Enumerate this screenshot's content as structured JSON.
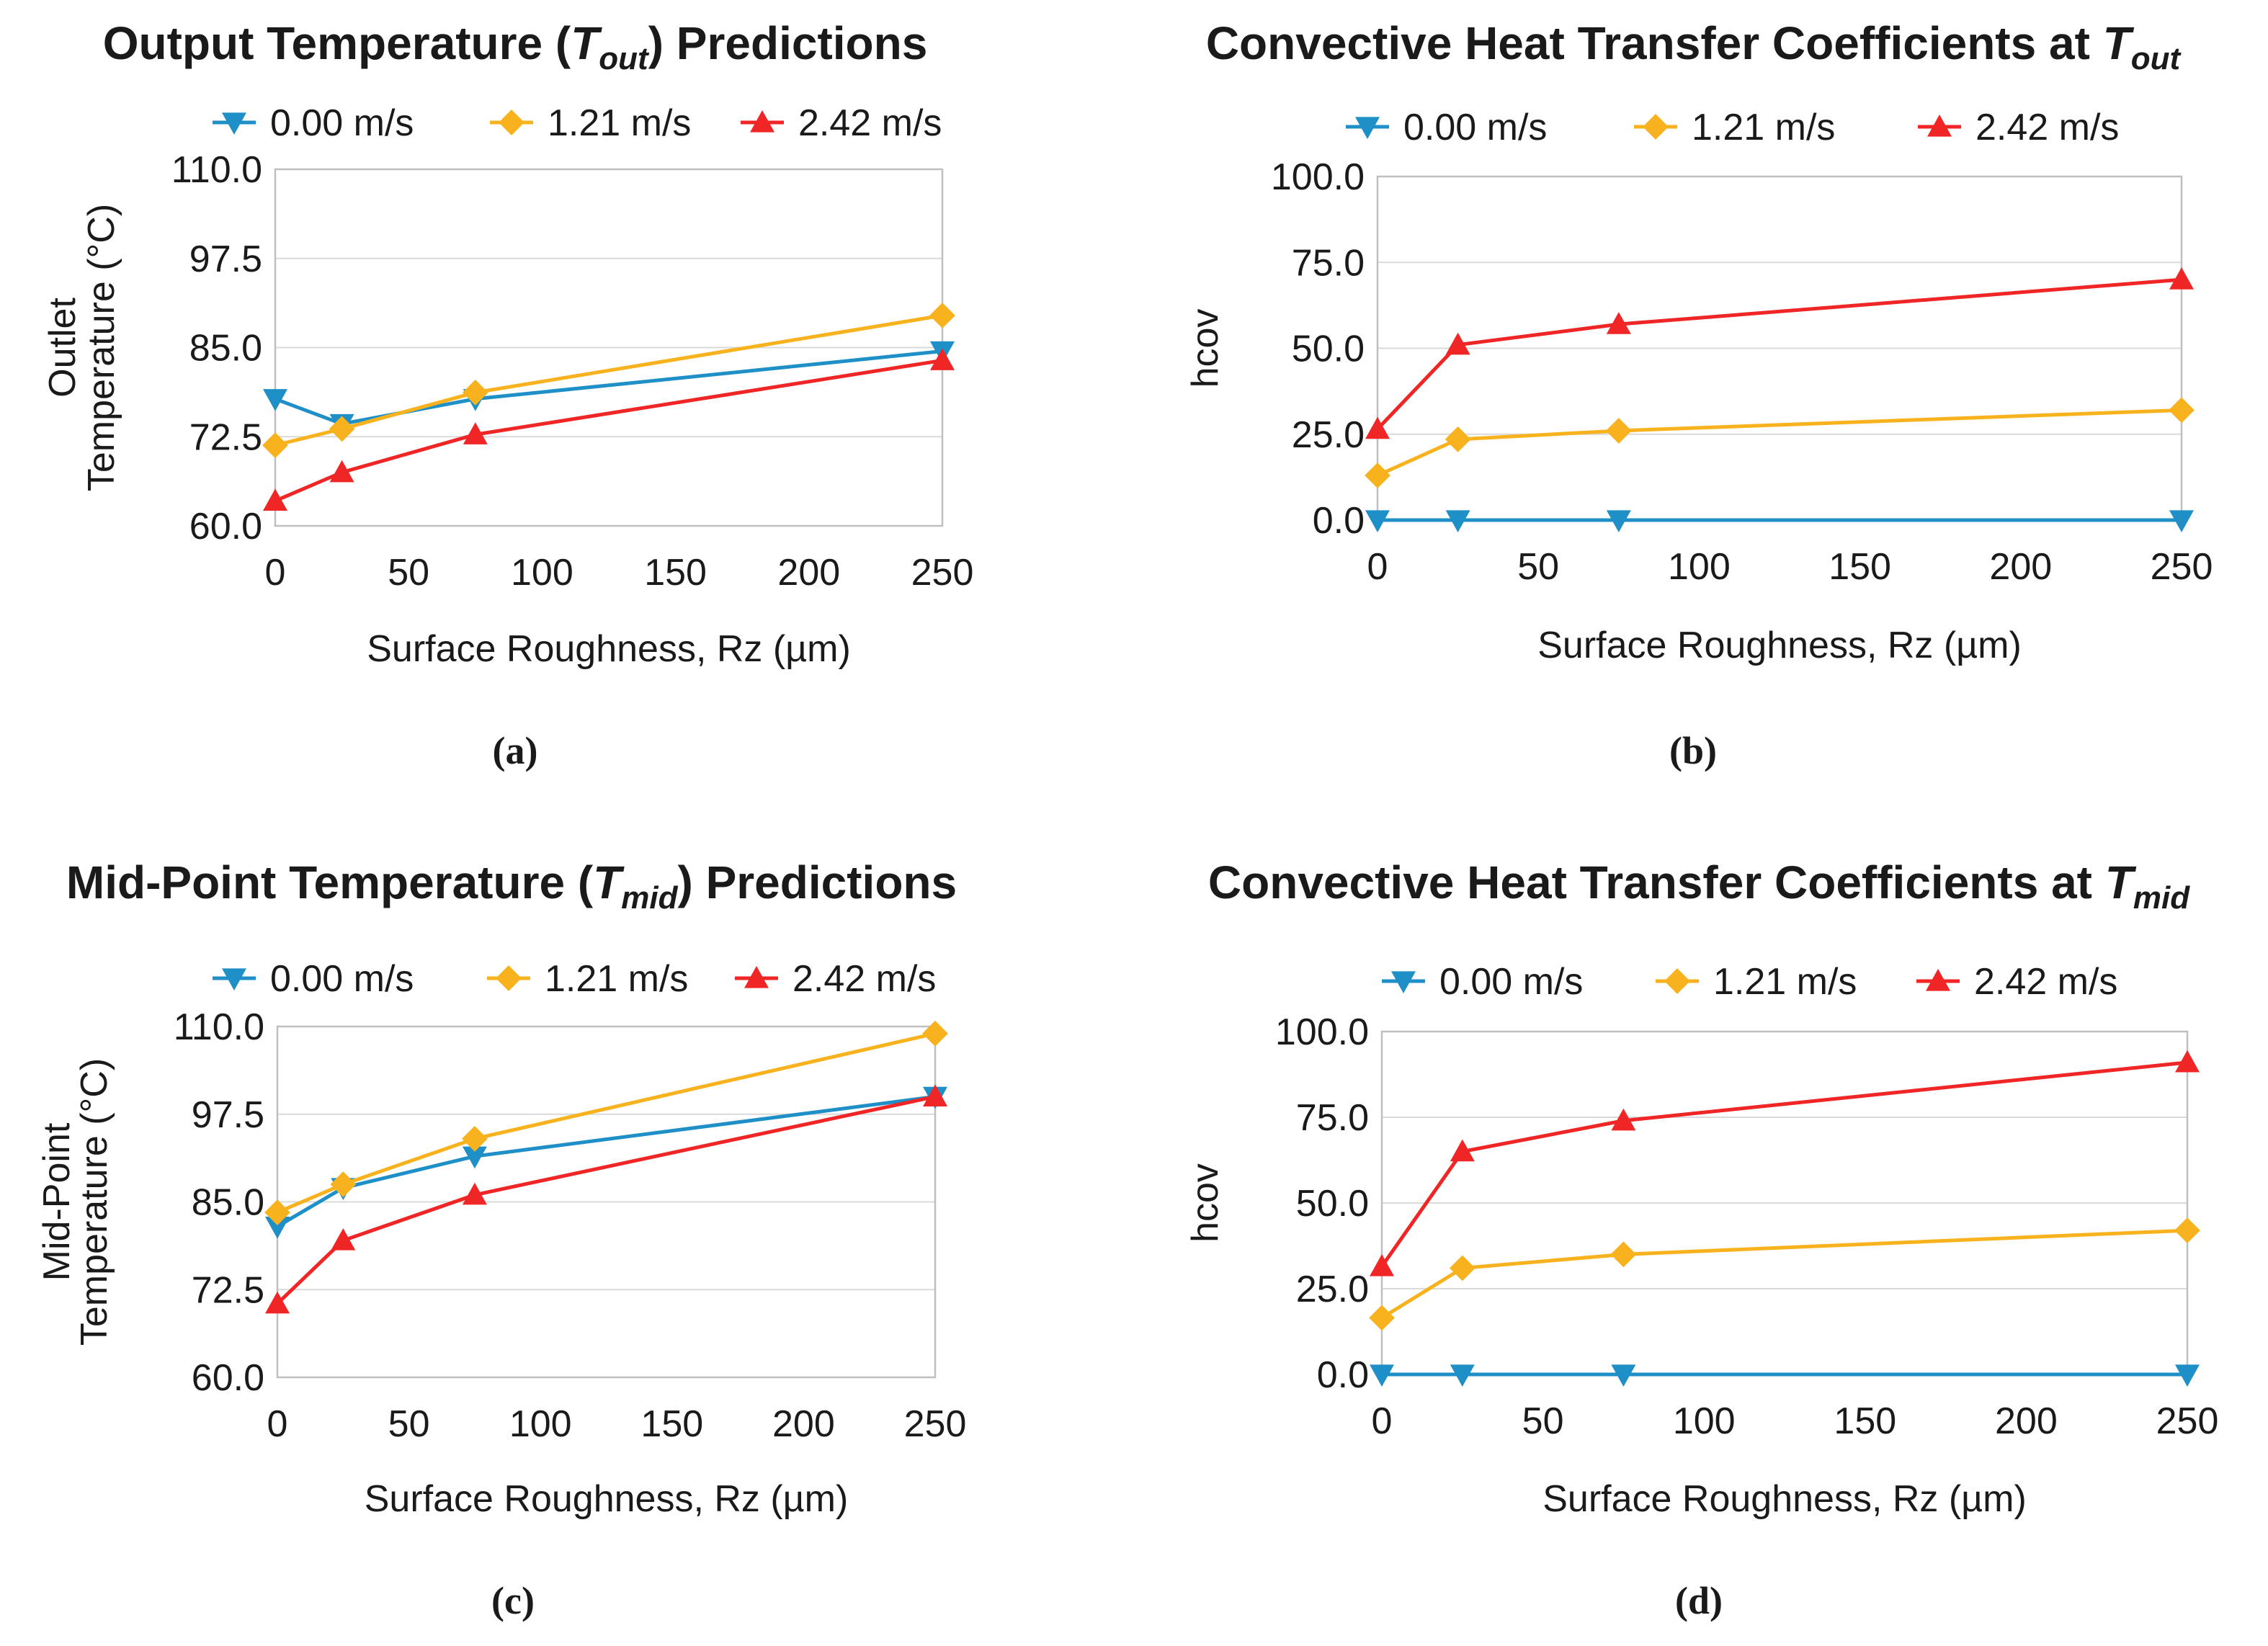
{
  "colors": {
    "s0": "#1f8fc8",
    "s1": "#f7b21e",
    "s2": "#f02626"
  },
  "chart_data": [
    {
      "type": "line",
      "tag": "(a)",
      "title": {
        "prefix": "Output Temperature (",
        "symbol": "T",
        "sub": "out",
        "suffix": ") Predictions"
      },
      "xlabel": "Surface Roughness, Rz (µm)",
      "ylabel": [
        "Outlet",
        "Temperature (°C)"
      ],
      "xlim": [
        0,
        250
      ],
      "ylim": [
        60,
        110
      ],
      "xticks": [
        "0",
        "50",
        "100",
        "150",
        "200",
        "250"
      ],
      "yticks": [
        "60.0",
        "72.5",
        "85.0",
        "97.5",
        "110.0"
      ],
      "grid": true,
      "legend": "top",
      "x": [
        0,
        25,
        75,
        250
      ],
      "series": [
        {
          "name": "0.00 m/s",
          "marker": "triangle-down",
          "values": [
            77.8,
            74.3,
            77.8,
            84.5
          ]
        },
        {
          "name": "1.21 m/s",
          "marker": "diamond",
          "values": [
            71.3,
            73.6,
            78.7,
            89.5
          ]
        },
        {
          "name": "2.42 m/s",
          "marker": "triangle-up",
          "values": [
            63.5,
            67.5,
            72.8,
            83.2
          ]
        }
      ]
    },
    {
      "type": "line",
      "tag": "(b)",
      "title": {
        "prefix": "Convective Heat Transfer Coefficients at ",
        "symbol": "T",
        "sub": "out",
        "suffix": ""
      },
      "xlabel": "Surface Roughness, Rz (µm)",
      "ylabel": [
        "hcov"
      ],
      "xlim": [
        0,
        250
      ],
      "ylim": [
        0,
        100
      ],
      "xticks": [
        "0",
        "50",
        "100",
        "150",
        "200",
        "250"
      ],
      "yticks": [
        "0.0",
        "25.0",
        "50.0",
        "75.0",
        "100.0"
      ],
      "grid": true,
      "legend": "top",
      "x": [
        0,
        25,
        75,
        250
      ],
      "series": [
        {
          "name": "0.00 m/s",
          "marker": "triangle-down",
          "values": [
            0,
            0,
            0,
            0
          ]
        },
        {
          "name": "1.21 m/s",
          "marker": "diamond",
          "values": [
            13,
            23.5,
            26,
            32
          ]
        },
        {
          "name": "2.42 m/s",
          "marker": "triangle-up",
          "values": [
            26.5,
            51,
            57,
            70
          ]
        }
      ]
    },
    {
      "type": "line",
      "tag": "(c)",
      "title": {
        "prefix": "Mid-Point Temperature (",
        "symbol": "T",
        "sub": "mid",
        "suffix": ") Predictions"
      },
      "xlabel": "Surface Roughness, Rz (µm)",
      "ylabel": [
        "Mid-Point",
        "Temperature (°C)"
      ],
      "xlim": [
        0,
        250
      ],
      "ylim": [
        60,
        110
      ],
      "xticks": [
        "0",
        "50",
        "100",
        "150",
        "200",
        "250"
      ],
      "yticks": [
        "60.0",
        "72.5",
        "85.0",
        "97.5",
        "110.0"
      ],
      "grid": true,
      "legend": "top",
      "x": [
        0,
        25,
        75,
        250
      ],
      "series": [
        {
          "name": "0.00 m/s",
          "marker": "triangle-down",
          "values": [
            81.5,
            87.0,
            91.5,
            100.0
          ]
        },
        {
          "name": "1.21 m/s",
          "marker": "diamond",
          "values": [
            83.5,
            87.5,
            94.0,
            109.0
          ]
        },
        {
          "name": "2.42 m/s",
          "marker": "triangle-up",
          "values": [
            70.5,
            79.5,
            86.0,
            100.0
          ]
        }
      ]
    },
    {
      "type": "line",
      "tag": "(d)",
      "title": {
        "prefix": "Convective Heat Transfer Coefficients at ",
        "symbol": "T",
        "sub": "mid",
        "suffix": ""
      },
      "xlabel": "Surface Roughness, Rz (µm)",
      "ylabel": [
        "hcov"
      ],
      "xlim": [
        0,
        250
      ],
      "ylim": [
        0,
        100
      ],
      "xticks": [
        "0",
        "50",
        "100",
        "150",
        "200",
        "250"
      ],
      "yticks": [
        "0.0",
        "25.0",
        "50.0",
        "75.0",
        "100.0"
      ],
      "grid": true,
      "legend": "top",
      "x": [
        0,
        25,
        75,
        250
      ],
      "series": [
        {
          "name": "0.00 m/s",
          "marker": "triangle-down",
          "values": [
            0,
            0,
            0,
            0
          ]
        },
        {
          "name": "1.21 m/s",
          "marker": "diamond",
          "values": [
            16.5,
            31,
            35,
            42
          ]
        },
        {
          "name": "2.42 m/s",
          "marker": "triangle-up",
          "values": [
            31.5,
            65,
            74,
            91
          ]
        }
      ]
    }
  ]
}
